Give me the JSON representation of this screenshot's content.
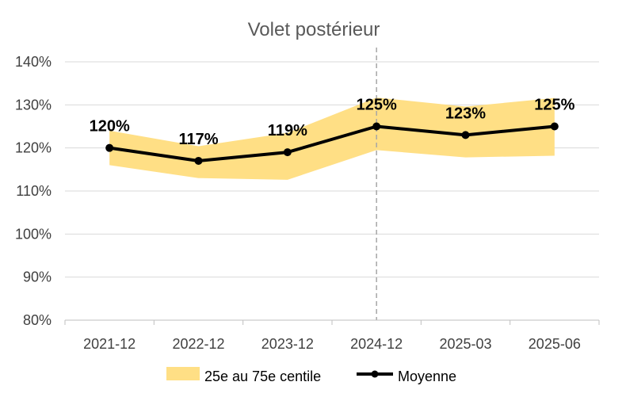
{
  "chart_data": {
    "type": "line",
    "title": "Volet postérieur",
    "categories": [
      "2021-12",
      "2022-12",
      "2023-12",
      "2024-12",
      "2025-03",
      "2025-06"
    ],
    "series": [
      {
        "name": "Moyenne",
        "values": [
          120,
          117,
          119,
          125,
          123,
          125
        ],
        "color": "#000000"
      }
    ],
    "band": {
      "name": "25e au 75e centile",
      "lower": [
        116,
        113,
        112.6,
        119.5,
        117.8,
        118.2
      ],
      "upper": [
        124,
        120.4,
        123.5,
        131.7,
        129.6,
        131.6
      ],
      "color": "#FFDF85"
    },
    "data_labels": [
      "120%",
      "117%",
      "119%",
      "125%",
      "123%",
      "125%"
    ],
    "y_ticks": [
      "80%",
      "90%",
      "100%",
      "110%",
      "120%",
      "130%",
      "140%"
    ],
    "ylim": [
      80,
      140
    ],
    "y_step": 10,
    "xlabel": "",
    "ylabel": "",
    "grid": true,
    "gridline_color": "#D9D9D9",
    "reference_line": {
      "at_category": "2024-12",
      "style": "dashed",
      "color": "#A6A6A6"
    },
    "legend": {
      "placement": "bottom",
      "entries": [
        "25e au 75e centile",
        "Moyenne"
      ]
    }
  }
}
